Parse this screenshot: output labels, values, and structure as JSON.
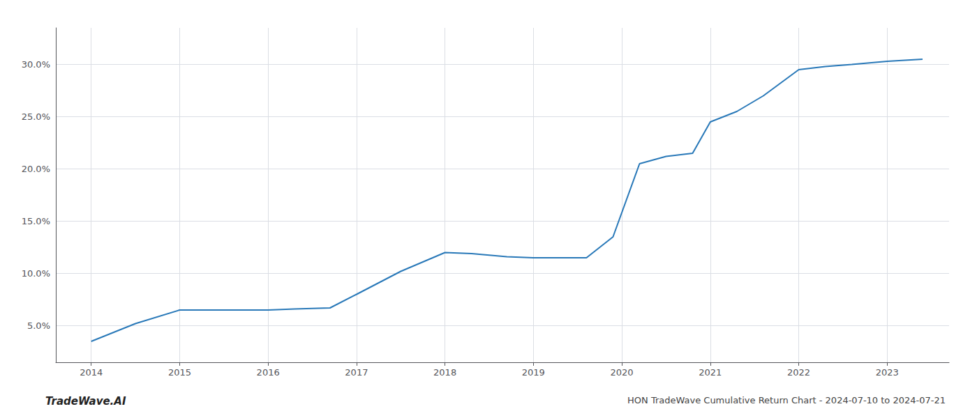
{
  "chart_data": {
    "type": "line",
    "title": "HON TradeWave Cumulative Return Chart - 2024-07-10 to 2024-07-21",
    "annotations": [
      "TradeWave.AI"
    ],
    "x": [
      2014.0,
      2014.5,
      2015.0,
      2015.5,
      2016.0,
      2016.3,
      2016.7,
      2017.0,
      2017.5,
      2018.0,
      2018.3,
      2018.7,
      2019.0,
      2019.3,
      2019.6,
      2019.9,
      2020.2,
      2020.5,
      2020.8,
      2021.0,
      2021.3,
      2021.6,
      2022.0,
      2022.3,
      2022.6,
      2023.0,
      2023.4
    ],
    "values": [
      3.5,
      5.2,
      6.5,
      6.5,
      6.5,
      6.6,
      6.7,
      8.0,
      10.2,
      12.0,
      11.9,
      11.6,
      11.5,
      11.5,
      11.5,
      13.5,
      20.5,
      21.2,
      21.5,
      24.5,
      25.5,
      27.0,
      29.5,
      29.8,
      30.0,
      30.3,
      30.5
    ],
    "color": "#2878b8",
    "xlim": [
      2013.6,
      2023.7
    ],
    "ylim": [
      1.5,
      33.5
    ],
    "xticks": [
      2014,
      2015,
      2016,
      2017,
      2018,
      2019,
      2020,
      2021,
      2022,
      2023
    ],
    "yticks": [
      {
        "value": 5.0,
        "label": "5.0%"
      },
      {
        "value": 10.0,
        "label": "10.0%"
      },
      {
        "value": 15.0,
        "label": "15.0%"
      },
      {
        "value": 20.0,
        "label": "20.0%"
      },
      {
        "value": 25.0,
        "label": "25.0%"
      },
      {
        "value": 30.0,
        "label": "30.0%"
      }
    ],
    "grid": true
  }
}
